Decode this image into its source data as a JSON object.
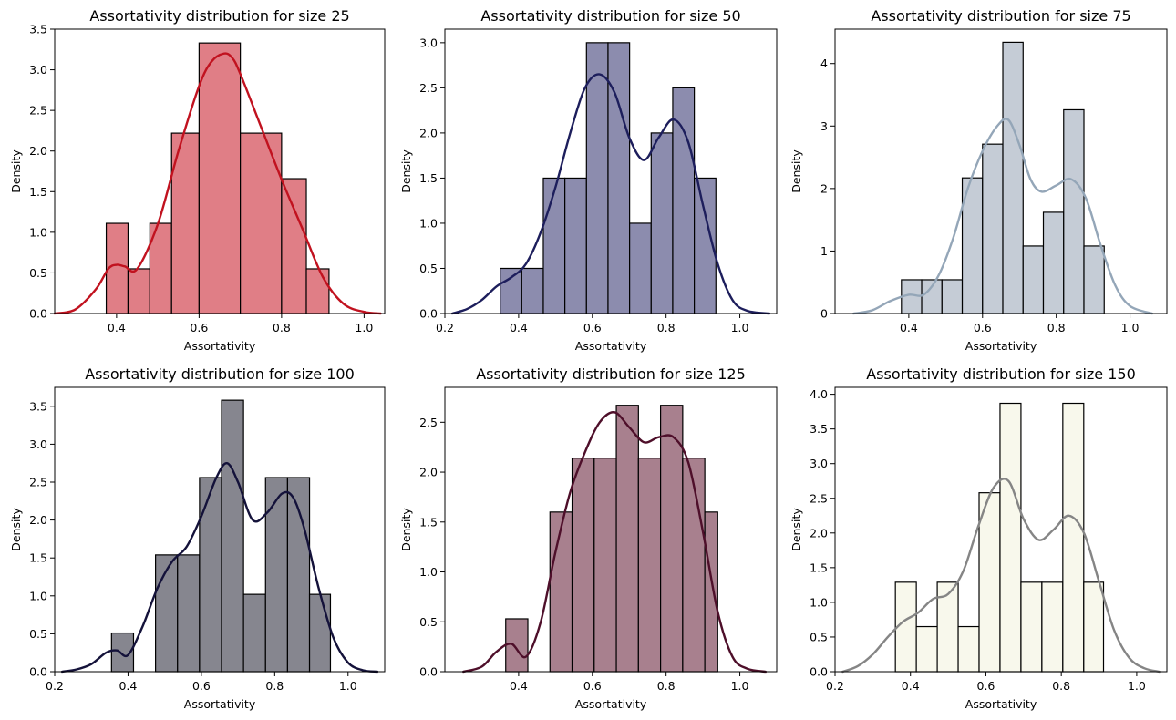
{
  "chart_data": [
    {
      "type": "histogram",
      "title": "Assortativity distribution for size 25",
      "xlabel": "Assortativity",
      "ylabel": "Density",
      "xlim": [
        0.25,
        1.05
      ],
      "ylim": [
        0,
        3.5
      ],
      "xticks": [
        0.4,
        0.6,
        0.8,
        1.0
      ],
      "xtick_labels": [
        "0.4",
        "0.6",
        "0.8",
        "1.0"
      ],
      "yticks": [
        0,
        0.5,
        1.0,
        1.5,
        2.0,
        2.5,
        3.0,
        3.5
      ],
      "ytick_labels": [
        "0.0",
        "0.5",
        "1.0",
        "1.5",
        "2.0",
        "2.5",
        "3.0",
        "3.5"
      ],
      "bar_color": "#e07e86",
      "line_color": "#c1121f",
      "bin_edges": [
        0.375,
        0.4278,
        0.4806,
        0.5334,
        0.6,
        0.7,
        0.8,
        0.86,
        0.915
      ],
      "densities": [
        1.11,
        0.55,
        1.11,
        2.22,
        3.33,
        2.22,
        1.66,
        0.55
      ],
      "kde_x": [
        0.25,
        0.3,
        0.35,
        0.38,
        0.4,
        0.42,
        0.45,
        0.5,
        0.55,
        0.6,
        0.63,
        0.66,
        0.68,
        0.7,
        0.75,
        0.8,
        0.85,
        0.9,
        0.95,
        1.0,
        1.04
      ],
      "kde_y": [
        0.0,
        0.05,
        0.3,
        0.55,
        0.6,
        0.58,
        0.55,
        1.1,
        2.0,
        2.8,
        3.1,
        3.2,
        3.15,
        2.95,
        2.3,
        1.65,
        1.05,
        0.45,
        0.12,
        0.02,
        0.0
      ]
    },
    {
      "type": "histogram",
      "title": "Assortativity distribution for size 50",
      "xlabel": "Assortativity",
      "ylabel": "Density",
      "xlim": [
        0.2,
        1.1
      ],
      "ylim": [
        0,
        3.15
      ],
      "xticks": [
        0.2,
        0.4,
        0.6,
        0.8,
        1.0
      ],
      "xtick_labels": [
        "0.2",
        "0.4",
        "0.6",
        "0.8",
        "1.0"
      ],
      "yticks": [
        0,
        0.5,
        1.0,
        1.5,
        2.0,
        2.5,
        3.0
      ],
      "ytick_labels": [
        "0.0",
        "0.5",
        "1.0",
        "1.5",
        "2.0",
        "2.5",
        "3.0"
      ],
      "bar_color": "#8c8cae",
      "line_color": "#1d1e5c",
      "bin_edges": [
        0.35,
        0.4085,
        0.467,
        0.5255,
        0.584,
        0.6425,
        0.701,
        0.7595,
        0.818,
        0.8765,
        0.935
      ],
      "densities": [
        0.5,
        0.5,
        1.5,
        1.5,
        3.0,
        3.0,
        1.0,
        2.0,
        2.5,
        1.5
      ],
      "kde_x": [
        0.22,
        0.26,
        0.3,
        0.34,
        0.38,
        0.42,
        0.46,
        0.5,
        0.54,
        0.58,
        0.62,
        0.66,
        0.7,
        0.74,
        0.78,
        0.82,
        0.86,
        0.9,
        0.94,
        0.98,
        1.02,
        1.08
      ],
      "kde_y": [
        0.0,
        0.05,
        0.15,
        0.3,
        0.4,
        0.55,
        0.9,
        1.4,
        2.0,
        2.5,
        2.65,
        2.45,
        1.95,
        1.7,
        1.95,
        2.15,
        1.9,
        1.2,
        0.55,
        0.15,
        0.03,
        0.0
      ]
    },
    {
      "type": "histogram",
      "title": "Assortativity distribution for size 75",
      "xlabel": "Assortativity",
      "ylabel": "Density",
      "xlim": [
        0.2,
        1.1
      ],
      "ylim": [
        0,
        4.55
      ],
      "xticks": [
        0.4,
        0.6,
        0.8,
        1.0
      ],
      "xtick_labels": [
        "0.4",
        "0.6",
        "0.8",
        "1.0"
      ],
      "yticks": [
        0,
        1,
        2,
        3,
        4
      ],
      "ytick_labels": [
        "0",
        "1",
        "2",
        "3",
        "4"
      ],
      "bar_color": "#c5ccd6",
      "line_color": "#94a6b8",
      "bin_edges": [
        0.38,
        0.435,
        0.49,
        0.545,
        0.6,
        0.655,
        0.71,
        0.765,
        0.82,
        0.875,
        0.93
      ],
      "densities": [
        0.54,
        0.54,
        0.54,
        2.17,
        2.71,
        4.34,
        1.08,
        1.62,
        3.26,
        1.08
      ],
      "kde_x": [
        0.25,
        0.3,
        0.35,
        0.4,
        0.44,
        0.48,
        0.52,
        0.56,
        0.6,
        0.64,
        0.67,
        0.7,
        0.73,
        0.76,
        0.8,
        0.84,
        0.88,
        0.92,
        0.96,
        1.0,
        1.06
      ],
      "kde_y": [
        0.0,
        0.05,
        0.2,
        0.3,
        0.3,
        0.6,
        1.2,
        2.0,
        2.6,
        3.0,
        3.1,
        2.7,
        2.15,
        1.95,
        2.05,
        2.15,
        1.85,
        1.1,
        0.45,
        0.12,
        0.0
      ]
    },
    {
      "type": "histogram",
      "title": "Assortativity distribution for size 100",
      "xlabel": "Assortativity",
      "ylabel": "Density",
      "xlim": [
        0.2,
        1.1
      ],
      "ylim": [
        0,
        3.75
      ],
      "xticks": [
        0.2,
        0.4,
        0.6,
        0.8,
        1.0
      ],
      "xtick_labels": [
        "0.2",
        "0.4",
        "0.6",
        "0.8",
        "1.0"
      ],
      "yticks": [
        0,
        0.5,
        1.0,
        1.5,
        2.0,
        2.5,
        3.0,
        3.5
      ],
      "ytick_labels": [
        "0.0",
        "0.5",
        "1.0",
        "1.5",
        "2.0",
        "2.5",
        "3.0",
        "3.5"
      ],
      "bar_color": "#86868f",
      "line_color": "#14123a",
      "bin_edges": [
        0.355,
        0.415,
        0.475,
        0.535,
        0.595,
        0.655,
        0.715,
        0.775,
        0.835,
        0.895,
        0.952
      ],
      "densities": [
        0.51,
        0.0,
        1.54,
        1.54,
        2.56,
        3.58,
        1.02,
        2.56,
        2.56,
        1.02
      ],
      "kde_x": [
        0.22,
        0.26,
        0.3,
        0.34,
        0.37,
        0.4,
        0.44,
        0.48,
        0.52,
        0.56,
        0.6,
        0.64,
        0.67,
        0.7,
        0.74,
        0.78,
        0.82,
        0.85,
        0.88,
        0.92,
        0.96,
        1.0,
        1.04,
        1.08
      ],
      "kde_y": [
        0.0,
        0.03,
        0.1,
        0.25,
        0.28,
        0.22,
        0.6,
        1.1,
        1.45,
        1.65,
        2.05,
        2.55,
        2.75,
        2.5,
        2.0,
        2.1,
        2.35,
        2.3,
        1.9,
        1.1,
        0.45,
        0.12,
        0.02,
        0.0
      ]
    },
    {
      "type": "histogram",
      "title": "Assortativity distribution for size 125",
      "xlabel": "Assortativity",
      "ylabel": "Density",
      "xlim": [
        0.2,
        1.1
      ],
      "ylim": [
        0,
        2.85
      ],
      "xticks": [
        0.4,
        0.6,
        0.8,
        1.0
      ],
      "xtick_labels": [
        "0.4",
        "0.6",
        "0.8",
        "1.0"
      ],
      "yticks": [
        0,
        0.5,
        1.0,
        1.5,
        2.0,
        2.5
      ],
      "ytick_labels": [
        "0.0",
        "0.5",
        "1.0",
        "1.5",
        "2.0",
        "2.5"
      ],
      "bar_color": "#a8808e",
      "line_color": "#4e0f2a",
      "bin_edges": [
        0.365,
        0.425,
        0.485,
        0.545,
        0.605,
        0.665,
        0.725,
        0.785,
        0.845,
        0.905,
        0.94
      ],
      "densities": [
        0.53,
        0.0,
        1.6,
        2.14,
        2.14,
        2.67,
        2.14,
        2.67,
        2.14,
        1.6
      ],
      "kde_x": [
        0.25,
        0.3,
        0.34,
        0.38,
        0.42,
        0.46,
        0.5,
        0.54,
        0.58,
        0.62,
        0.66,
        0.7,
        0.74,
        0.78,
        0.82,
        0.86,
        0.9,
        0.94,
        0.98,
        1.02,
        1.07
      ],
      "kde_y": [
        0.0,
        0.05,
        0.2,
        0.28,
        0.15,
        0.5,
        1.2,
        1.8,
        2.2,
        2.5,
        2.6,
        2.45,
        2.3,
        2.35,
        2.35,
        2.1,
        1.4,
        0.6,
        0.15,
        0.03,
        0.0
      ]
    },
    {
      "type": "histogram",
      "title": "Assortativity distribution for size 150",
      "xlabel": "Assortativity",
      "ylabel": "Density",
      "xlim": [
        0.2,
        1.08
      ],
      "ylim": [
        0,
        4.1
      ],
      "xticks": [
        0.2,
        0.4,
        0.6,
        0.8,
        1.0
      ],
      "xtick_labels": [
        "0.2",
        "0.4",
        "0.6",
        "0.8",
        "1.0"
      ],
      "yticks": [
        0,
        0.5,
        1.0,
        1.5,
        2.0,
        2.5,
        3.0,
        3.5,
        4.0
      ],
      "ytick_labels": [
        "0.0",
        "0.5",
        "1.0",
        "1.5",
        "2.0",
        "2.5",
        "3.0",
        "3.5",
        "4.0"
      ],
      "bar_color": "#f8f8ec",
      "line_color": "#858585",
      "bin_edges": [
        0.36,
        0.4155,
        0.471,
        0.5265,
        0.582,
        0.6375,
        0.693,
        0.7485,
        0.804,
        0.8595,
        0.912
      ],
      "densities": [
        1.29,
        0.65,
        1.29,
        0.65,
        2.58,
        3.87,
        1.29,
        1.29,
        3.87,
        1.29
      ],
      "kde_x": [
        0.22,
        0.26,
        0.3,
        0.34,
        0.38,
        0.42,
        0.46,
        0.5,
        0.54,
        0.58,
        0.62,
        0.66,
        0.7,
        0.74,
        0.78,
        0.82,
        0.86,
        0.9,
        0.94,
        0.98,
        1.02,
        1.06
      ],
      "kde_y": [
        0.0,
        0.08,
        0.25,
        0.5,
        0.72,
        0.85,
        1.05,
        1.12,
        1.45,
        2.1,
        2.65,
        2.75,
        2.2,
        1.9,
        2.05,
        2.25,
        2.0,
        1.3,
        0.6,
        0.2,
        0.05,
        0.0
      ]
    }
  ]
}
